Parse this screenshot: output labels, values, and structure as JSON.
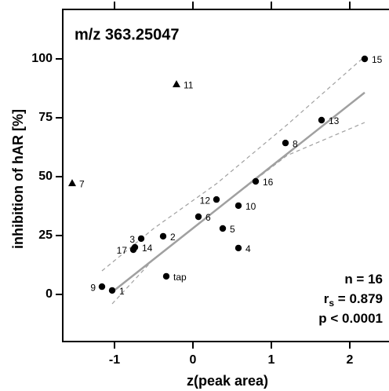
{
  "chart_data": {
    "type": "scatter",
    "title": "m/z 363.25047",
    "x_label": "z(peak area)",
    "y_label": "inhibition of hAR [%]",
    "xlim": [
      -1.66,
      2.5
    ],
    "ylim": [
      -20,
      121
    ],
    "xticks": [
      -1,
      0,
      1,
      2
    ],
    "yticks": [
      0,
      25,
      50,
      75,
      100
    ],
    "series": [
      {
        "marker": "circle",
        "color": "#000000",
        "x": [
          -1.03,
          -1.16,
          -0.34,
          -0.76,
          -0.74,
          -0.66,
          -0.38,
          0.07,
          0.38,
          0.58,
          0.3,
          0.58,
          0.8,
          1.18,
          1.64,
          2.19
        ],
        "values": [
          1.7,
          3.3,
          7.7,
          19,
          20,
          23.7,
          24.7,
          33,
          28,
          19.7,
          40.3,
          37.7,
          48,
          64.3,
          74,
          100
        ],
        "labels": [
          "1",
          "9",
          "tap",
          "17",
          "14",
          "3",
          "2",
          "6",
          "5",
          "4",
          "12",
          "10",
          "16",
          "8",
          "13",
          "15"
        ]
      },
      {
        "marker": "triangle",
        "color": "#000000",
        "x": [
          -0.21,
          -1.54
        ],
        "values": [
          89.3,
          47.3
        ],
        "labels": [
          "11",
          "7"
        ]
      }
    ],
    "lines": [
      {
        "color": "#a0a0a0",
        "width": 2.5,
        "dash": false,
        "x": [
          -1.03,
          2.19
        ],
        "values": [
          1,
          85.7
        ]
      },
      {
        "color": "#a0a0a0",
        "width": 1.2,
        "dash": true,
        "x": [
          -1.16,
          -0.5,
          0.3,
          1.2,
          2.19
        ],
        "values": [
          10,
          28,
          47,
          72,
          101
        ]
      },
      {
        "color": "#a0a0a0",
        "width": 1.2,
        "dash": true,
        "x": [
          -1.03,
          -0.5,
          0.3,
          1.2,
          2.19
        ],
        "values": [
          -4,
          15,
          36,
          59,
          73
        ]
      }
    ],
    "stats": [
      {
        "text": "n = 16"
      },
      {
        "text": "r",
        "sub": "s",
        "rest": " = 0.879"
      },
      {
        "text": "p < 0.0001"
      }
    ]
  }
}
